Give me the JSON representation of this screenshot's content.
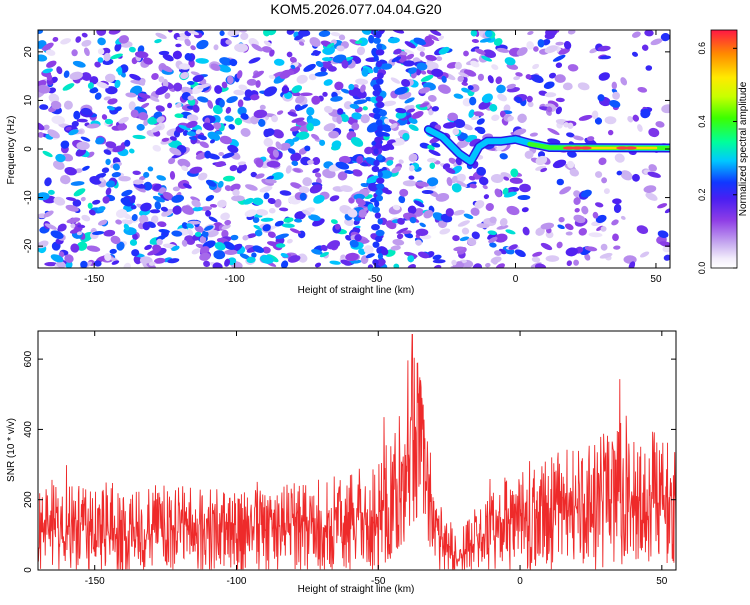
{
  "title": "KOM5.2026.077.04.04.G20",
  "chart_data": [
    {
      "type": "heatmap",
      "title": "KOM5.2026.077.04.04.G20",
      "xlabel": "Height of straight line (km)",
      "ylabel": "Frequency (Hz)",
      "xlim": [
        -170,
        55
      ],
      "ylim": [
        -24.5,
        24.5
      ],
      "xticks": [
        -150,
        -100,
        -50,
        0,
        50
      ],
      "yticks": [
        -20,
        -10,
        0,
        10,
        20
      ],
      "colorbar": {
        "label": "Normalized spectral amplitude",
        "range": [
          0.0,
          0.65
        ],
        "ticks": [
          "0.0",
          "0.2",
          "0.4",
          "0.6"
        ],
        "colormap": "rainbow"
      },
      "features": [
        {
          "name": "vertical-stripe",
          "x": -49,
          "amplitude": 0.22
        },
        {
          "name": "tone-line",
          "points": [
            [
              -31,
              4
            ],
            [
              -26,
              2.5
            ],
            [
              -20,
              -1
            ],
            [
              -16,
              -2.6
            ],
            [
              -13,
              0.5
            ],
            [
              -10,
              1.6
            ],
            [
              -5,
              1.6
            ],
            [
              0,
              2.0
            ],
            [
              5,
              1.2
            ],
            [
              12,
              0.3
            ],
            [
              55,
              0.2
            ]
          ]
        }
      ]
    },
    {
      "type": "line",
      "xlabel": "Height of straight line (km)",
      "ylabel": "SNR (10 * v/v)",
      "xlim": [
        -170,
        55
      ],
      "ylim": [
        0,
        680
      ],
      "xticks": [
        -150,
        -100,
        -50,
        0,
        50
      ],
      "yticks": [
        0,
        200,
        400,
        600
      ],
      "series_color": "#ee2a2a",
      "envelope": {
        "x": [
          -170,
          -150,
          -120,
          -100,
          -80,
          -60,
          -50,
          -44,
          -40,
          -37,
          -34,
          -30,
          -27,
          -22,
          -10,
          0,
          10,
          20,
          30,
          40,
          55
        ],
        "base": [
          120,
          110,
          110,
          120,
          120,
          130,
          145,
          220,
          330,
          360,
          320,
          190,
          70,
          40,
          120,
          140,
          160,
          180,
          200,
          210,
          210
        ],
        "spread": [
          130,
          130,
          130,
          130,
          135,
          140,
          150,
          180,
          230,
          260,
          230,
          160,
          90,
          60,
          140,
          150,
          160,
          175,
          190,
          195,
          195
        ]
      },
      "peak": {
        "x": -38,
        "y": 670
      }
    }
  ]
}
